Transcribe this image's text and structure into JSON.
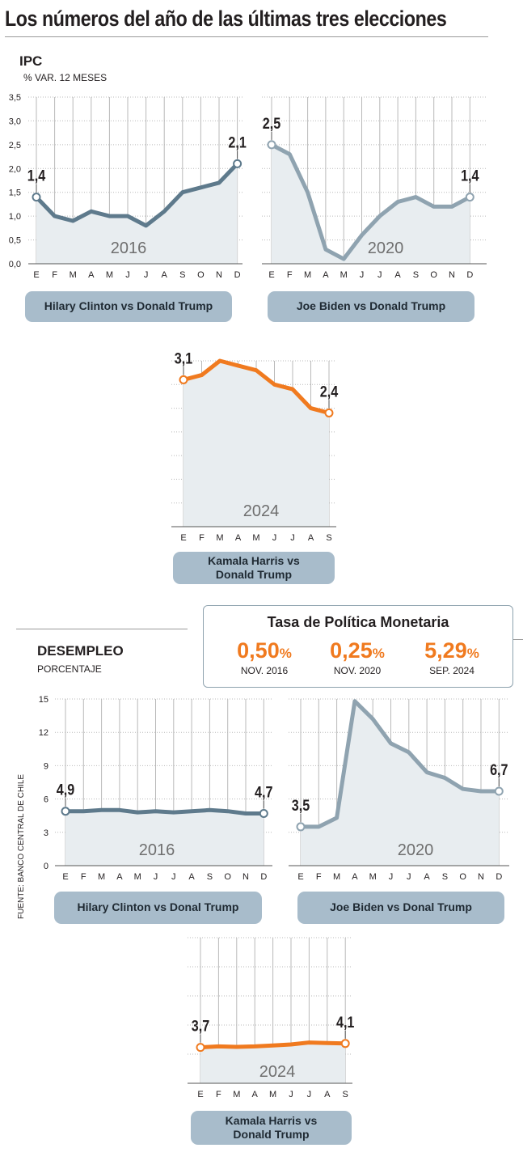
{
  "title": "Los números del año de las últimas tres elecciones",
  "ipc": {
    "title": "IPC",
    "subtitle": "% VAR. 12 MESES",
    "y_ticks": [
      "3,5",
      "3,0",
      "2,5",
      "2,0",
      "1,5",
      "1,0",
      "0,5",
      "0,0"
    ]
  },
  "desempleo": {
    "title": "DESEMPLEO",
    "subtitle": "PORCENTAJE",
    "y_ticks": [
      "15",
      "12",
      "9",
      "6",
      "3",
      "0"
    ]
  },
  "tpm": {
    "title": "Tasa de Política Monetaria",
    "items": [
      {
        "value": "0,50",
        "unit": "%",
        "label": "NOV. 2016"
      },
      {
        "value": "0,25",
        "unit": "%",
        "label": "NOV. 2020"
      },
      {
        "value": "5,29",
        "unit": "%",
        "label": "SEP. 2024"
      }
    ]
  },
  "labels": {
    "ipc_2016": "Hilary Clinton vs Donald Trump",
    "ipc_2020": "Joe Biden vs Donald Trump",
    "ipc_2024_l1": "Kamala Harris vs",
    "ipc_2024_l2": "Donald Trump",
    "des_2016": "Hilary Clinton vs Donal Trump",
    "des_2020": "Joe Biden vs Donal Trump",
    "des_2024_l1": "Kamala Harris vs",
    "des_2024_l2": "Donald Trump"
  },
  "source": "FUENTE: BANCO CENTRAL DE CHILE",
  "colors": {
    "series_2016": "#5e7a8c",
    "series_2020": "#8fa3b0",
    "series_2024": "#f07a1f",
    "area_fill": "#e8edf0",
    "grid": "#b9b9b9",
    "pill": "#a8bccb"
  },
  "chart_data": [
    {
      "type": "area",
      "group": "IPC",
      "title": "2016",
      "ylabel": "% VAR. 12 MESES",
      "ylim": [
        0,
        3.5
      ],
      "categories": [
        "E",
        "F",
        "M",
        "A",
        "M",
        "J",
        "J",
        "A",
        "S",
        "O",
        "N",
        "D"
      ],
      "values": [
        1.4,
        1.0,
        0.9,
        1.1,
        1.0,
        1.0,
        0.8,
        1.1,
        1.5,
        1.6,
        1.7,
        2.1
      ],
      "labels": [
        {
          "index": 0,
          "text": "1,4"
        },
        {
          "index": 11,
          "text": "2,1"
        }
      ],
      "grid": true
    },
    {
      "type": "area",
      "group": "IPC",
      "title": "2020",
      "ylim": [
        0,
        3.5
      ],
      "categories": [
        "E",
        "F",
        "M",
        "A",
        "M",
        "J",
        "J",
        "A",
        "S",
        "O",
        "N",
        "D"
      ],
      "values": [
        2.5,
        2.3,
        1.5,
        0.3,
        0.1,
        0.6,
        1.0,
        1.3,
        1.4,
        1.2,
        1.2,
        1.4
      ],
      "labels": [
        {
          "index": 0,
          "text": "2,5"
        },
        {
          "index": 11,
          "text": "1,4"
        }
      ],
      "grid": true
    },
    {
      "type": "area",
      "group": "IPC",
      "title": "2024",
      "ylim": [
        0,
        3.5
      ],
      "categories": [
        "E",
        "F",
        "M",
        "A",
        "M",
        "J",
        "J",
        "A",
        "S"
      ],
      "values": [
        3.1,
        3.2,
        3.5,
        3.4,
        3.3,
        3.0,
        2.9,
        2.5,
        2.4
      ],
      "labels": [
        {
          "index": 0,
          "text": "3,1"
        },
        {
          "index": 8,
          "text": "2,4"
        }
      ],
      "grid": true
    },
    {
      "type": "area",
      "group": "DESEMPLEO",
      "title": "2016",
      "ylabel": "PORCENTAJE",
      "ylim": [
        0,
        15
      ],
      "categories": [
        "E",
        "F",
        "M",
        "A",
        "M",
        "J",
        "J",
        "A",
        "S",
        "O",
        "N",
        "D"
      ],
      "values": [
        4.9,
        4.9,
        5.0,
        5.0,
        4.8,
        4.9,
        4.8,
        4.9,
        5.0,
        4.9,
        4.7,
        4.7
      ],
      "labels": [
        {
          "index": 0,
          "text": "4,9"
        },
        {
          "index": 11,
          "text": "4,7"
        }
      ],
      "grid": true
    },
    {
      "type": "area",
      "group": "DESEMPLEO",
      "title": "2020",
      "ylim": [
        0,
        15
      ],
      "categories": [
        "E",
        "F",
        "M",
        "A",
        "M",
        "J",
        "J",
        "A",
        "S",
        "O",
        "N",
        "D"
      ],
      "values": [
        3.5,
        3.5,
        4.3,
        14.8,
        13.2,
        11.0,
        10.2,
        8.4,
        7.9,
        6.9,
        6.7,
        6.7
      ],
      "labels": [
        {
          "index": 0,
          "text": "3,5"
        },
        {
          "index": 11,
          "text": "6,7"
        }
      ],
      "grid": true
    },
    {
      "type": "area",
      "group": "DESEMPLEO",
      "title": "2024",
      "ylim": [
        0,
        15
      ],
      "categories": [
        "E",
        "F",
        "M",
        "A",
        "M",
        "J",
        "J",
        "A",
        "S"
      ],
      "values": [
        3.7,
        3.8,
        3.75,
        3.8,
        3.9,
        4.0,
        4.2,
        4.15,
        4.1
      ],
      "labels": [
        {
          "index": 0,
          "text": "3,7"
        },
        {
          "index": 8,
          "text": "4,1"
        }
      ],
      "grid": true
    }
  ]
}
